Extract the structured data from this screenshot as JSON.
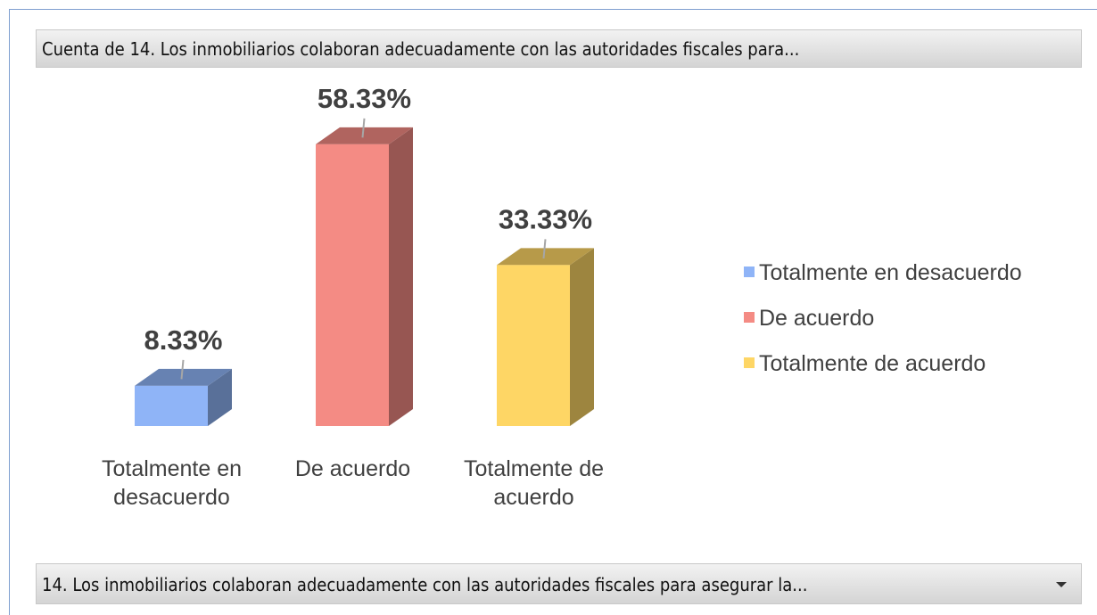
{
  "chart_data": {
    "type": "bar3d",
    "title": "Cuenta de 14. Los inmobiliarios colaboran adecuadamente con las autoridades fiscales para...",
    "field_button": "14. Los inmobiliarios colaboran adecuadamente con las autoridades fiscales para asegurar la...",
    "categories": [
      "Totalmente en desacuerdo",
      "De acuerdo",
      "Totalmente de acuerdo"
    ],
    "values": [
      8.33,
      58.33,
      33.33
    ],
    "value_labels": [
      "8.33%",
      "58.33%",
      "33.33%"
    ],
    "colors": [
      "#8fb4f7",
      "#f48b84",
      "#fed665"
    ],
    "legend": "right"
  }
}
